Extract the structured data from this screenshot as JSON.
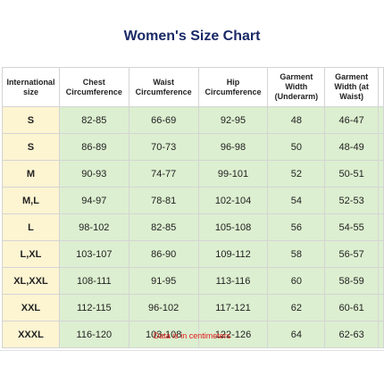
{
  "title": "Women's Size Chart",
  "headers": [
    "International size",
    "Chest Circumference",
    "Waist Circumference",
    "Hip Circumference",
    "Garment Width (Underarm)",
    "Garment Width (at Waist)"
  ],
  "rows": [
    [
      "S",
      "82-85",
      "66-69",
      "92-95",
      "48",
      "46-47"
    ],
    [
      "S",
      "86-89",
      "70-73",
      "96-98",
      "50",
      "48-49"
    ],
    [
      "M",
      "90-93",
      "74-77",
      "99-101",
      "52",
      "50-51"
    ],
    [
      "M,L",
      "94-97",
      "78-81",
      "102-104",
      "54",
      "52-53"
    ],
    [
      "L",
      "98-102",
      "82-85",
      "105-108",
      "56",
      "54-55"
    ],
    [
      "L,XL",
      "103-107",
      "86-90",
      "109-112",
      "58",
      "56-57"
    ],
    [
      "XL,XXL",
      "108-111",
      "91-95",
      "113-116",
      "60",
      "58-59"
    ],
    [
      "XXL",
      "112-115",
      "96-102",
      "117-121",
      "62",
      "60-61"
    ],
    [
      "XXXL",
      "116-120",
      "103-108",
      "122-126",
      "64",
      "62-63"
    ]
  ],
  "note": "Data is in centimeters",
  "colors": {
    "title": "#1a2a66",
    "size_column": "#fdf4d2",
    "value_cells": "#dcefd0",
    "note": "#e0191a"
  }
}
